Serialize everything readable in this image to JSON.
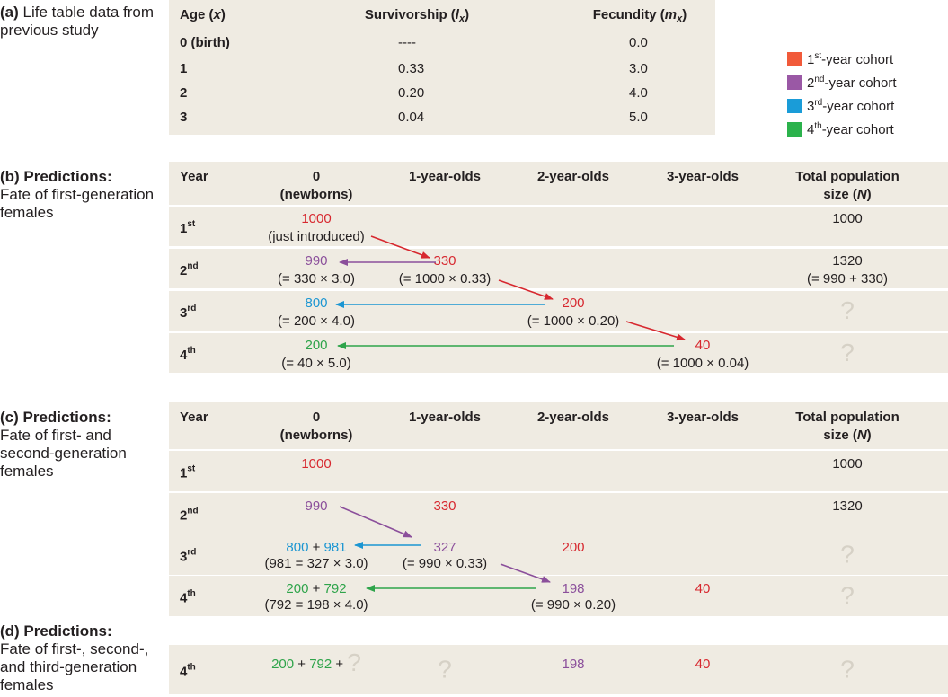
{
  "panel_a": {
    "label": "(a)",
    "caption": "Life table data from previous study",
    "headers": [
      [
        [
          {
            "text": "Age ("
          },
          {
            "text": "x",
            "italic": true
          },
          {
            "text": ")"
          }
        ]
      ],
      [
        [
          {
            "text": "Survivorship ("
          },
          {
            "text": "l",
            "italic": true
          },
          {
            "text": "x",
            "italic": true,
            "sub": true
          },
          {
            "text": ")"
          }
        ]
      ],
      [
        [
          {
            "text": "Fecundity ("
          },
          {
            "text": "m",
            "italic": true
          },
          {
            "text": "x",
            "italic": true,
            "sub": true
          },
          {
            "text": ")"
          }
        ]
      ]
    ],
    "rows": [
      [
        "0 (birth)",
        "----",
        "0.0"
      ],
      [
        "1",
        "0.33",
        "3.0"
      ],
      [
        "2",
        "0.20",
        "4.0"
      ],
      [
        "3",
        "0.04",
        "5.0"
      ]
    ]
  },
  "legend": [
    {
      "num": "1",
      "sup": "st",
      "text": "-year cohort",
      "color": "#f15a3a"
    },
    {
      "num": "2",
      "sup": "nd",
      "text": "-year cohort",
      "color": "#9a58a5"
    },
    {
      "num": "3",
      "sup": "rd",
      "text": "-year cohort",
      "color": "#1a9cd8"
    },
    {
      "num": "4",
      "sup": "th",
      "text": "-year cohort",
      "color": "#2bb24c"
    }
  ],
  "panel_b": {
    "label": "(b) Predictions:",
    "caption": "Fate of first-generation females",
    "headers": [
      [
        [
          {
            "text": "Year"
          }
        ]
      ],
      [
        [
          {
            "text": "0"
          }
        ],
        [
          {
            "text": "(newborns)"
          }
        ]
      ],
      [
        [
          {
            "text": "1-year-olds"
          }
        ]
      ],
      [
        [
          {
            "text": "2-year-olds"
          }
        ]
      ],
      [
        [
          {
            "text": "3-year-olds"
          }
        ]
      ],
      [
        [
          {
            "text": "Total population"
          }
        ],
        [
          {
            "text": "size ("
          },
          {
            "text": "N",
            "italic": true
          },
          {
            "text": ")"
          }
        ]
      ]
    ],
    "rows": [
      {
        "year": {
          "num": "1",
          "sup": "st"
        },
        "cells": [
          {
            "parts": [
              {
                "text": "1000",
                "color": "#d7282f"
              }
            ],
            "note": "(just introduced)"
          },
          null,
          null,
          null,
          {
            "parts": [
              {
                "text": "1000",
                "color": "#231f20"
              }
            ]
          }
        ]
      },
      {
        "year": {
          "num": "2",
          "sup": "nd"
        },
        "cells": [
          {
            "parts": [
              {
                "text": "990",
                "color": "#8b4f9b"
              }
            ],
            "note": "(= 330 × 3.0)"
          },
          {
            "parts": [
              {
                "text": "330",
                "color": "#d7282f"
              }
            ],
            "note": "(= 1000 × 0.33)"
          },
          null,
          null,
          {
            "parts": [
              {
                "text": "1320",
                "color": "#231f20"
              }
            ],
            "note": "(= 990 + 330)"
          }
        ]
      },
      {
        "year": {
          "num": "3",
          "sup": "rd"
        },
        "cells": [
          {
            "parts": [
              {
                "text": "800",
                "color": "#1c96d2"
              }
            ],
            "note": "(= 200 × 4.0)"
          },
          null,
          {
            "parts": [
              {
                "text": "200",
                "color": "#d7282f"
              }
            ],
            "note": "(= 1000 × 0.20)"
          },
          null,
          {
            "parts": [
              {
                "text": "?",
                "color": "#d6d1c6",
                "large": true
              }
            ]
          }
        ]
      },
      {
        "year": {
          "num": "4",
          "sup": "th"
        },
        "cells": [
          {
            "parts": [
              {
                "text": "200",
                "color": "#2ea44a"
              }
            ],
            "note": "(= 40 × 5.0)"
          },
          null,
          null,
          {
            "parts": [
              {
                "text": "40",
                "color": "#d7282f"
              }
            ],
            "note": "(= 1000 × 0.04)"
          },
          {
            "parts": [
              {
                "text": "?",
                "color": "#d6d1c6",
                "large": true
              }
            ]
          }
        ]
      }
    ]
  },
  "panel_c": {
    "label": "(c) Predictions:",
    "caption": "Fate of first- and second-generation females",
    "headers": [
      [
        [
          {
            "text": "Year"
          }
        ]
      ],
      [
        [
          {
            "text": "0"
          }
        ],
        [
          {
            "text": "(newborns)"
          }
        ]
      ],
      [
        [
          {
            "text": "1-year-olds"
          }
        ]
      ],
      [
        [
          {
            "text": "2-year-olds"
          }
        ]
      ],
      [
        [
          {
            "text": "3-year-olds"
          }
        ]
      ],
      [
        [
          {
            "text": "Total population"
          }
        ],
        [
          {
            "text": "size ("
          },
          {
            "text": "N",
            "italic": true
          },
          {
            "text": ")"
          }
        ]
      ]
    ],
    "rows": [
      {
        "year": {
          "num": "1",
          "sup": "st"
        },
        "cells": [
          {
            "parts": [
              {
                "text": "1000",
                "color": "#d7282f"
              }
            ]
          },
          null,
          null,
          null,
          {
            "parts": [
              {
                "text": "1000",
                "color": "#231f20"
              }
            ]
          }
        ]
      },
      {
        "year": {
          "num": "2",
          "sup": "nd"
        },
        "cells": [
          {
            "parts": [
              {
                "text": "990",
                "color": "#8b4f9b"
              }
            ]
          },
          {
            "parts": [
              {
                "text": "330",
                "color": "#d7282f"
              }
            ]
          },
          null,
          null,
          {
            "parts": [
              {
                "text": "1320",
                "color": "#231f20"
              }
            ]
          }
        ]
      },
      {
        "year": {
          "num": "3",
          "sup": "rd"
        },
        "cells": [
          {
            "parts": [
              {
                "text": "800",
                "color": "#1c96d2"
              },
              {
                "text": " + ",
                "color": "#231f20"
              },
              {
                "text": "981",
                "color": "#1c96d2"
              }
            ],
            "note": "(981 = 327 × 3.0)"
          },
          {
            "parts": [
              {
                "text": "327",
                "color": "#8b4f9b"
              }
            ],
            "note": "(= 990 × 0.33)"
          },
          {
            "parts": [
              {
                "text": "200",
                "color": "#d7282f"
              }
            ]
          },
          null,
          {
            "parts": [
              {
                "text": "?",
                "color": "#d6d1c6",
                "large": true
              }
            ]
          }
        ]
      },
      {
        "year": {
          "num": "4",
          "sup": "th"
        },
        "cells": [
          {
            "parts": [
              {
                "text": "200",
                "color": "#2ea44a"
              },
              {
                "text": " + ",
                "color": "#231f20"
              },
              {
                "text": "792",
                "color": "#2ea44a"
              }
            ],
            "note": "(792 = 198 × 4.0)"
          },
          null,
          {
            "parts": [
              {
                "text": "198",
                "color": "#8b4f9b"
              }
            ],
            "note": "(= 990 × 0.20)"
          },
          {
            "parts": [
              {
                "text": "40",
                "color": "#d7282f"
              }
            ]
          },
          {
            "parts": [
              {
                "text": "?",
                "color": "#d6d1c6",
                "large": true
              }
            ]
          }
        ]
      }
    ]
  },
  "panel_d": {
    "label": "(d) Predictions:",
    "caption": "Fate of first-, second-, and third-generation females",
    "rows": [
      {
        "year": {
          "num": "4",
          "sup": "th"
        },
        "cells": [
          {
            "parts": [
              {
                "text": "200",
                "color": "#2ea44a"
              },
              {
                "text": " + ",
                "color": "#231f20"
              },
              {
                "text": "792",
                "color": "#2ea44a"
              },
              {
                "text": " + ",
                "color": "#231f20"
              },
              {
                "text": "?",
                "color": "#d6d1c6",
                "large": true
              }
            ]
          },
          {
            "parts": [
              {
                "text": "?",
                "color": "#d6d1c6",
                "large": true
              }
            ]
          },
          {
            "parts": [
              {
                "text": "198",
                "color": "#8b4f9b"
              }
            ]
          },
          {
            "parts": [
              {
                "text": "40",
                "color": "#d7282f"
              }
            ]
          },
          {
            "parts": [
              {
                "text": "?",
                "color": "#d6d1c6",
                "large": true
              }
            ]
          }
        ]
      }
    ]
  }
}
